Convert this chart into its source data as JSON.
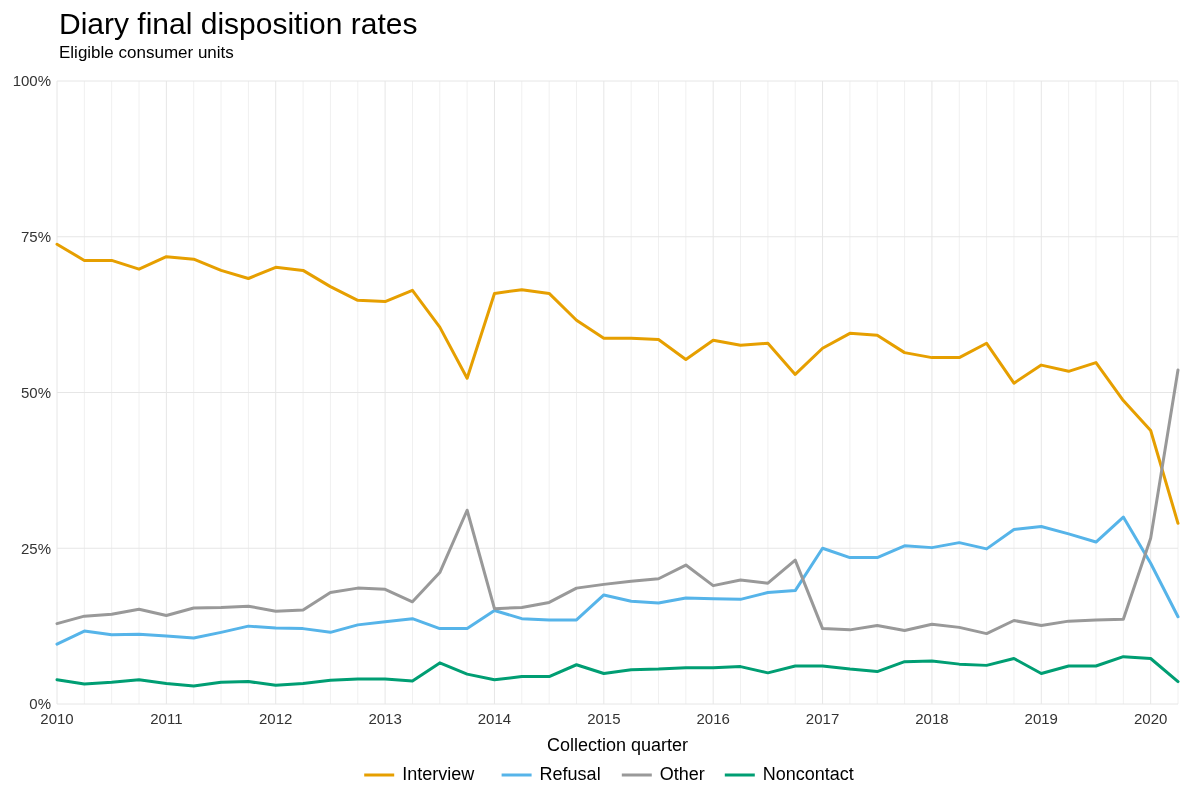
{
  "chart_data": {
    "type": "line",
    "title": "Diary final disposition rates",
    "subtitle": "Eligible consumer units",
    "xlabel": "Collection quarter",
    "x": [
      2010,
      2010.25,
      2010.5,
      2010.75,
      2011,
      2011.25,
      2011.5,
      2011.75,
      2012,
      2012.25,
      2012.5,
      2012.75,
      2013,
      2013.25,
      2013.5,
      2013.75,
      2014,
      2014.25,
      2014.5,
      2014.75,
      2015,
      2015.25,
      2015.5,
      2015.75,
      2016,
      2016.25,
      2016.5,
      2016.75,
      2017,
      2017.25,
      2017.5,
      2017.75,
      2018,
      2018.25,
      2018.5,
      2018.75,
      2019,
      2019.25,
      2019.5,
      2019.75,
      2020,
      2020.25
    ],
    "series": [
      {
        "name": "Interview",
        "color": "#e69f00",
        "values": [
          73.8,
          71.2,
          71.2,
          69.8,
          71.8,
          71.4,
          69.6,
          68.3,
          70.1,
          69.6,
          67.0,
          64.8,
          64.6,
          66.4,
          60.5,
          52.3,
          65.9,
          66.5,
          65.9,
          61.6,
          58.7,
          58.7,
          58.5,
          55.3,
          58.4,
          57.6,
          57.9,
          52.9,
          57.1,
          59.5,
          59.2,
          56.4,
          55.6,
          55.6,
          57.9,
          51.5,
          54.4,
          53.4,
          54.8,
          48.7,
          43.9,
          29
        ]
      },
      {
        "name": "Refusal",
        "color": "#56b4e9",
        "values": [
          9.6,
          11.7,
          11.1,
          11.2,
          10.9,
          10.6,
          11.5,
          12.5,
          12.2,
          12.1,
          11.5,
          12.7,
          13.2,
          13.7,
          12.1,
          12.1,
          15.0,
          13.7,
          13.5,
          13.5,
          17.5,
          16.5,
          16.2,
          17.0,
          16.9,
          16.8,
          17.9,
          18.2,
          25.0,
          23.5,
          23.5,
          25.4,
          25.1,
          25.9,
          24.9,
          28.0,
          28.5,
          27.3,
          26.0,
          30.0,
          22.6,
          14
        ]
      },
      {
        "name": "Other",
        "color": "#999999",
        "values": [
          12.9,
          14.1,
          14.4,
          15.2,
          14.2,
          15.4,
          15.5,
          15.7,
          14.9,
          15.1,
          17.9,
          18.6,
          18.4,
          16.4,
          21.1,
          31.1,
          15.3,
          15.5,
          16.3,
          18.6,
          19.2,
          19.7,
          20.1,
          22.3,
          19.0,
          19.9,
          19.4,
          23.1,
          12.1,
          11.9,
          12.6,
          11.8,
          12.8,
          12.3,
          11.3,
          13.4,
          12.6,
          13.3,
          13.5,
          13.6,
          26.6,
          53.6
        ]
      },
      {
        "name": "Noncontact",
        "color": "#009e73",
        "values": [
          3.9,
          3.2,
          3.5,
          3.9,
          3.3,
          2.9,
          3.5,
          3.6,
          3.0,
          3.3,
          3.8,
          4.0,
          4.0,
          3.7,
          6.6,
          4.8,
          3.9,
          4.4,
          4.4,
          6.3,
          4.9,
          5.5,
          5.6,
          5.8,
          5.8,
          6.0,
          5.0,
          6.1,
          6.1,
          5.6,
          5.2,
          6.8,
          6.9,
          6.4,
          6.2,
          7.3,
          4.9,
          6.1,
          6.1,
          7.6,
          7.3,
          3.6
        ]
      }
    ],
    "xlim": [
      2010,
      2020.25
    ],
    "xticks": [
      2010,
      {
        "value": 2010.25,
        "label": null
      },
      {
        "value": 2010.5,
        "label": null
      },
      {
        "value": 2010.75,
        "label": null
      },
      2011,
      {
        "value": 2011.25,
        "label": null
      },
      {
        "value": 2011.5,
        "label": null
      },
      {
        "value": 2011.75,
        "label": null
      },
      2012,
      {
        "value": 2012.25,
        "label": null
      },
      {
        "value": 2012.5,
        "label": null
      },
      {
        "value": 2012.75,
        "label": null
      },
      2013,
      {
        "value": 2013.25,
        "label": null
      },
      {
        "value": 2013.5,
        "label": null
      },
      {
        "value": 2013.75,
        "label": null
      },
      2014,
      {
        "value": 2014.25,
        "label": null
      },
      {
        "value": 2014.5,
        "label": null
      },
      {
        "value": 2014.75,
        "label": null
      },
      2015,
      {
        "value": 2015.25,
        "label": null
      },
      {
        "value": 2015.5,
        "label": null
      },
      {
        "value": 2015.75,
        "label": null
      },
      2016,
      {
        "value": 2016.25,
        "label": null
      },
      {
        "value": 2016.5,
        "label": null
      },
      {
        "value": 2016.75,
        "label": null
      },
      2017,
      {
        "value": 2017.25,
        "label": null
      },
      {
        "value": 2017.5,
        "label": null
      },
      {
        "value": 2017.75,
        "label": null
      },
      2018,
      {
        "value": 2018.25,
        "label": null
      },
      {
        "value": 2018.5,
        "label": null
      },
      {
        "value": 2018.75,
        "label": null
      },
      2019,
      {
        "value": 2019.25,
        "label": null
      },
      {
        "value": 2019.5,
        "label": null
      },
      {
        "value": 2019.75,
        "label": null
      },
      2020,
      {
        "value": 2020.25,
        "label": null
      }
    ],
    "ylim": [
      0,
      100
    ],
    "yticks": [
      {
        "value": 0,
        "label": "0%"
      },
      {
        "value": 25,
        "label": "25%"
      },
      {
        "value": 50,
        "label": "50%"
      },
      {
        "value": 75,
        "label": "75%"
      },
      {
        "value": 100,
        "label": "100%"
      }
    ],
    "grid": true,
    "legend": "bottom",
    "marker": "none",
    "line_style": "solid"
  }
}
